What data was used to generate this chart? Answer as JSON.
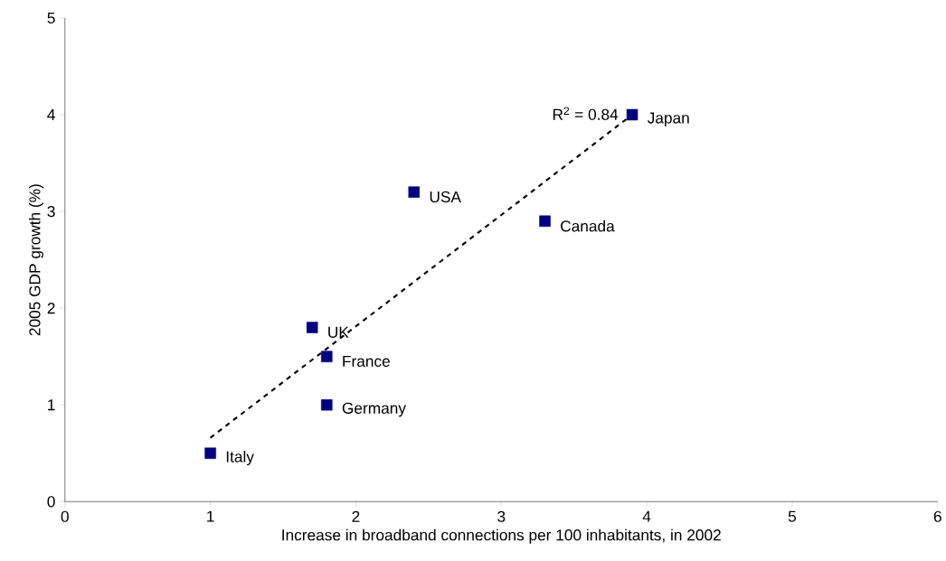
{
  "chart_data": {
    "type": "scatter",
    "xlabel": "Increase in broadband connections per 100 inhabitants, in 2002",
    "ylabel": "2005 GDP growth (%)",
    "xlim": [
      0,
      6
    ],
    "ylim": [
      0,
      5
    ],
    "xticks": [
      0,
      1,
      2,
      3,
      4,
      5,
      6
    ],
    "yticks": [
      0,
      1,
      2,
      3,
      4,
      5
    ],
    "grid": false,
    "series": [
      {
        "color": "#000080",
        "marker": "square",
        "x": [
          1.0,
          1.8,
          1.8,
          1.7,
          2.4,
          3.3,
          3.9
        ],
        "values": [
          0.5,
          1.0,
          1.5,
          1.8,
          3.2,
          2.9,
          4.0
        ]
      },
      {
        "type": "line",
        "color": "#000000",
        "marker": "none",
        "line_style": "dashed",
        "x": [
          1.0,
          3.9
        ],
        "values": [
          0.66,
          4.0
        ]
      }
    ],
    "annotations": [
      {
        "text": "Italy",
        "x": 1.0,
        "y": 0.5
      },
      {
        "text": "Germany",
        "x": 1.8,
        "y": 1.0
      },
      {
        "text": "France",
        "x": 1.8,
        "y": 1.5
      },
      {
        "text": "UK",
        "x": 1.7,
        "y": 1.8
      },
      {
        "text": "USA",
        "x": 2.4,
        "y": 3.2
      },
      {
        "text": "Canada",
        "x": 3.3,
        "y": 2.9
      },
      {
        "text": "Japan",
        "x": 3.9,
        "y": 4.0
      },
      "R$^{2}$ = 0.84"
    ]
  }
}
